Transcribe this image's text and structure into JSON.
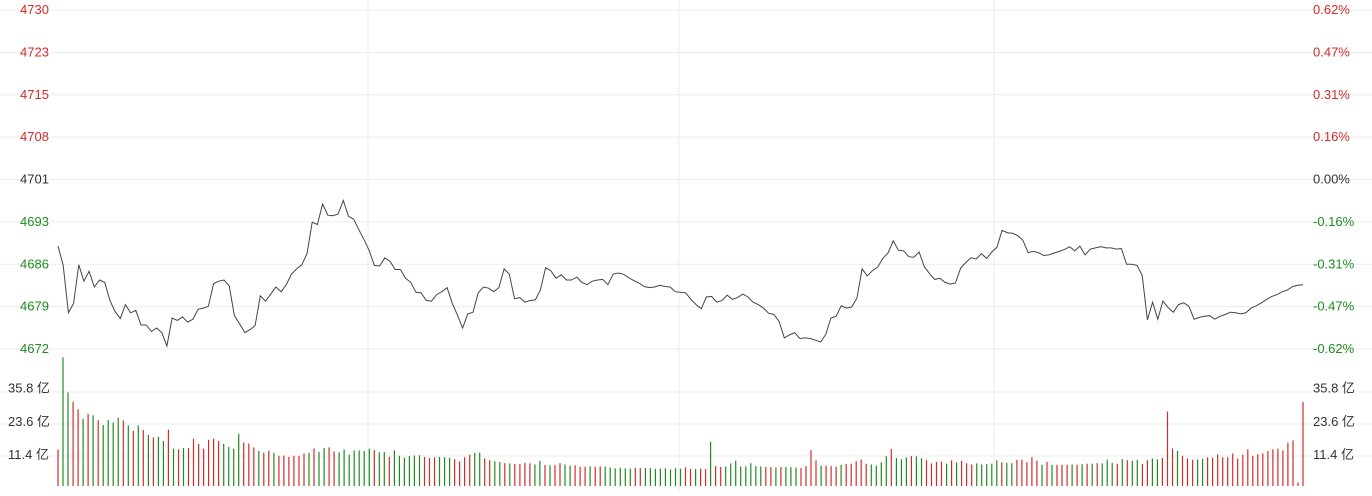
{
  "chart_data": [
    {
      "type": "line",
      "title": "",
      "series": [
        {
          "values": [
            4689.6,
            4686.3,
            4678.2,
            4679.8,
            4686.4,
            4683.6,
            4685.3,
            4682.6,
            4683.8,
            4683.4,
            4680.3,
            4678.4,
            4677.2,
            4679.6,
            4678.2,
            4678.6,
            4676.1,
            4676.1,
            4675.0,
            4675.6,
            4674.8,
            4672.5,
            4677.3,
            4676.9,
            4677.5,
            4676.6,
            4677.1,
            4678.8,
            4679.0,
            4679.3,
            4683.2,
            4683.6,
            4683.8,
            4682.8,
            4677.7,
            4676.3,
            4674.8,
            4675.3,
            4676.0,
            4681.1,
            4680.2,
            4681.4,
            4682.6,
            4681.8,
            4683.0,
            4684.8,
            4685.7,
            4686.4,
            4688.3,
            4693.7,
            4693.3,
            4696.8,
            4694.9,
            4694.8,
            4695.1,
            4697.4,
            4694.7,
            4694.2,
            4692.4,
            4690.7,
            4688.8,
            4686.3,
            4686.2,
            4687.6,
            4687.0,
            4685.6,
            4685.6,
            4684.1,
            4683.4,
            4681.7,
            4681.6,
            4680.3,
            4680.2,
            4681.3,
            4681.8,
            4682.5,
            4679.8,
            4677.8,
            4675.6,
            4678.0,
            4678.3,
            4681.6,
            4682.6,
            4682.4,
            4681.8,
            4682.5,
            4685.7,
            4684.8,
            4680.6,
            4680.8,
            4680.0,
            4680.3,
            4680.4,
            4682.1,
            4685.9,
            4685.4,
            4684.1,
            4684.7,
            4683.8,
            4683.8,
            4684.3,
            4683.4,
            4683.0,
            4683.6,
            4683.8,
            4683.9,
            4683.0,
            4684.8,
            4685.0,
            4684.8,
            4684.2,
            4683.7,
            4683.3,
            4682.7,
            4682.5,
            4682.6,
            4682.9,
            4682.7,
            4682.6,
            4681.8,
            4681.7,
            4681.6,
            4680.5,
            4679.6,
            4678.9,
            4680.9,
            4681.0,
            4680.0,
            4680.3,
            4681.2,
            4680.5,
            4680.8,
            4681.4,
            4680.9,
            4680.0,
            4679.6,
            4679.0,
            4678.1,
            4677.9,
            4676.7,
            4673.9,
            4674.4,
            4674.8,
            4673.8,
            4673.9,
            4673.8,
            4673.5,
            4673.2,
            4674.5,
            4677.3,
            4677.6,
            4679.4,
            4679.0,
            4679.2,
            4680.7,
            4685.7,
            4684.5,
            4685.4,
            4686.0,
            4687.5,
            4688.4,
            4690.5,
            4688.9,
            4688.8,
            4687.8,
            4687.7,
            4688.6,
            4686.1,
            4684.9,
            4683.9,
            4684.1,
            4683.4,
            4683.1,
            4683.3,
            4685.8,
            4686.8,
            4687.6,
            4687.4,
            4688.3,
            4687.5,
            4688.6,
            4689.4,
            4692.3,
            4691.9,
            4691.8,
            4691.4,
            4690.6,
            4688.5,
            4688.7,
            4688.5,
            4688.0,
            4688.1,
            4688.4,
            4688.7,
            4689.0,
            4689.5,
            4688.8,
            4689.6,
            4688.1,
            4689.1,
            4689.3,
            4689.5,
            4689.3,
            4689.3,
            4689.1,
            4689.2,
            4686.5,
            4686.5,
            4686.3,
            4684.6,
            4677.0,
            4680.0,
            4677.1,
            4680.2,
            4679.1,
            4678.3,
            4679.6,
            4679.9,
            4679.3,
            4677.1,
            4677.4,
            4677.6,
            4677.7,
            4677.1,
            4677.6,
            4677.9,
            4678.3,
            4678.2,
            4678.0,
            4678.2,
            4679.0,
            4679.4,
            4679.9,
            4680.5,
            4681.0,
            4681.3,
            4681.8,
            4682.1,
            4682.7,
            4682.9,
            4683.0
          ]
        }
      ],
      "ylim": [
        4672.0,
        4730.0
      ],
      "yticks_left": [
        "4730",
        "4723",
        "4715",
        "4708",
        "4701",
        "4693",
        "4686",
        "4679",
        "4672"
      ],
      "yticks_right": [
        "0.62%",
        "0.47%",
        "0.31%",
        "0.16%",
        "0.00%",
        "-0.16%",
        "-0.31%",
        "-0.47%",
        "-0.62%"
      ],
      "reference_value": 4701,
      "grid": true,
      "colors": {
        "up": "#d42b2b",
        "down": "#1e8c1e",
        "neutral": "#333333",
        "line": "#444444",
        "grid": "#ececec"
      }
    },
    {
      "type": "bar",
      "title": "",
      "unit": "亿",
      "ylim": [
        0,
        45.6
      ],
      "yticks_left": [
        "35.8 亿",
        "23.6 亿",
        "11.4 亿"
      ],
      "yticks_right": [
        "35.8 亿",
        "23.6 亿",
        "11.4 亿"
      ],
      "series": [
        {
          "values": [
            13.4,
            47.3,
            34.4,
            31.0,
            28.2,
            24.7,
            26.6,
            26.0,
            24.2,
            22.4,
            24.3,
            23.4,
            25.1,
            24.1,
            22.3,
            20.3,
            22.3,
            20.6,
            18.8,
            17.9,
            18.1,
            16.6,
            20.7,
            13.7,
            13.5,
            14.0,
            14.0,
            17.4,
            15.5,
            13.7,
            17.0,
            17.4,
            16.5,
            15.5,
            14.4,
            13.7,
            19.2,
            16.0,
            15.6,
            14.2,
            12.9,
            12.3,
            13.0,
            12.2,
            11.1,
            11.2,
            10.7,
            11.1,
            11.1,
            12.0,
            12.2,
            13.8,
            12.5,
            14.0,
            14.2,
            12.7,
            12.4,
            13.4,
            11.5,
            13.1,
            13.1,
            12.9,
            13.7,
            13.2,
            12.4,
            12.5,
            10.7,
            13.1,
            11.1,
            10.4,
            11.0,
            11.2,
            11.3,
            10.7,
            10.3,
            10.5,
            10.7,
            10.6,
            10.4,
            9.9,
            9.1,
            10.6,
            11.5,
            12.2,
            12.3,
            10.2,
            9.5,
            9.1,
            8.8,
            8.4,
            8.3,
            8.1,
            8.0,
            8.5,
            8.3,
            7.9,
            9.3,
            7.7,
            7.6,
            7.7,
            8.4,
            7.9,
            7.5,
            7.6,
            7.1,
            7.1,
            7.2,
            7.1,
            7.2,
            7.1,
            6.8,
            6.5,
            6.7,
            6.5,
            6.4,
            6.7,
            6.6,
            6.6,
            6.6,
            6.3,
            6.4,
            6.5,
            6.1,
            6.5,
            6.4,
            6.9,
            6.3,
            6.3,
            6.4,
            6.2,
            16.2,
            7.3,
            7.0,
            7.2,
            8.3,
            9.3,
            7.2,
            7.2,
            8.4,
            7.3,
            7.2,
            7.0,
            7.0,
            6.8,
            7.0,
            7.0,
            6.9,
            6.8,
            6.6,
            7.3,
            13.2,
            9.4,
            7.4,
            7.5,
            7.3,
            7.1,
            7.8,
            8.1,
            8.2,
            9.1,
            9.7,
            8.2,
            7.9,
            7.5,
            8.7,
            11.0,
            13.6,
            10.3,
            9.8,
            10.5,
            11.0,
            10.9,
            10.2,
            9.5,
            8.3,
            8.9,
            9.0,
            8.2,
            9.5,
            8.6,
            9.3,
            8.4,
            7.9,
            8.3,
            7.9,
            8.0,
            8.2,
            9.5,
            8.7,
            8.5,
            8.4,
            9.6,
            9.7,
            8.7,
            10.6,
            9.3,
            7.8,
            8.9,
            7.8,
            7.8,
            7.8,
            7.8,
            7.9,
            7.8,
            8.0,
            8.2,
            8.2,
            8.4,
            8.3,
            9.7,
            8.5,
            8.2,
            9.9,
            9.5,
            9.3,
            9.6,
            8.1,
            9.5,
            10.1,
            9.8,
            10.3,
            27.4,
            13.8,
            12.9,
            11.1,
            10.2,
            9.6,
            9.8,
            10.0,
            10.5,
            10.4,
            11.6,
            10.6,
            10.6,
            11.9,
            10.1,
            11.5,
            13.5,
            11.1,
            11.7,
            12.0,
            12.9,
            13.5,
            13.7,
            13.1,
            15.9,
            16.8,
            1.3,
            30.9
          ]
        }
      ],
      "colors": {
        "up": "#d42b2b",
        "down": "#1e8c1e"
      }
    }
  ]
}
